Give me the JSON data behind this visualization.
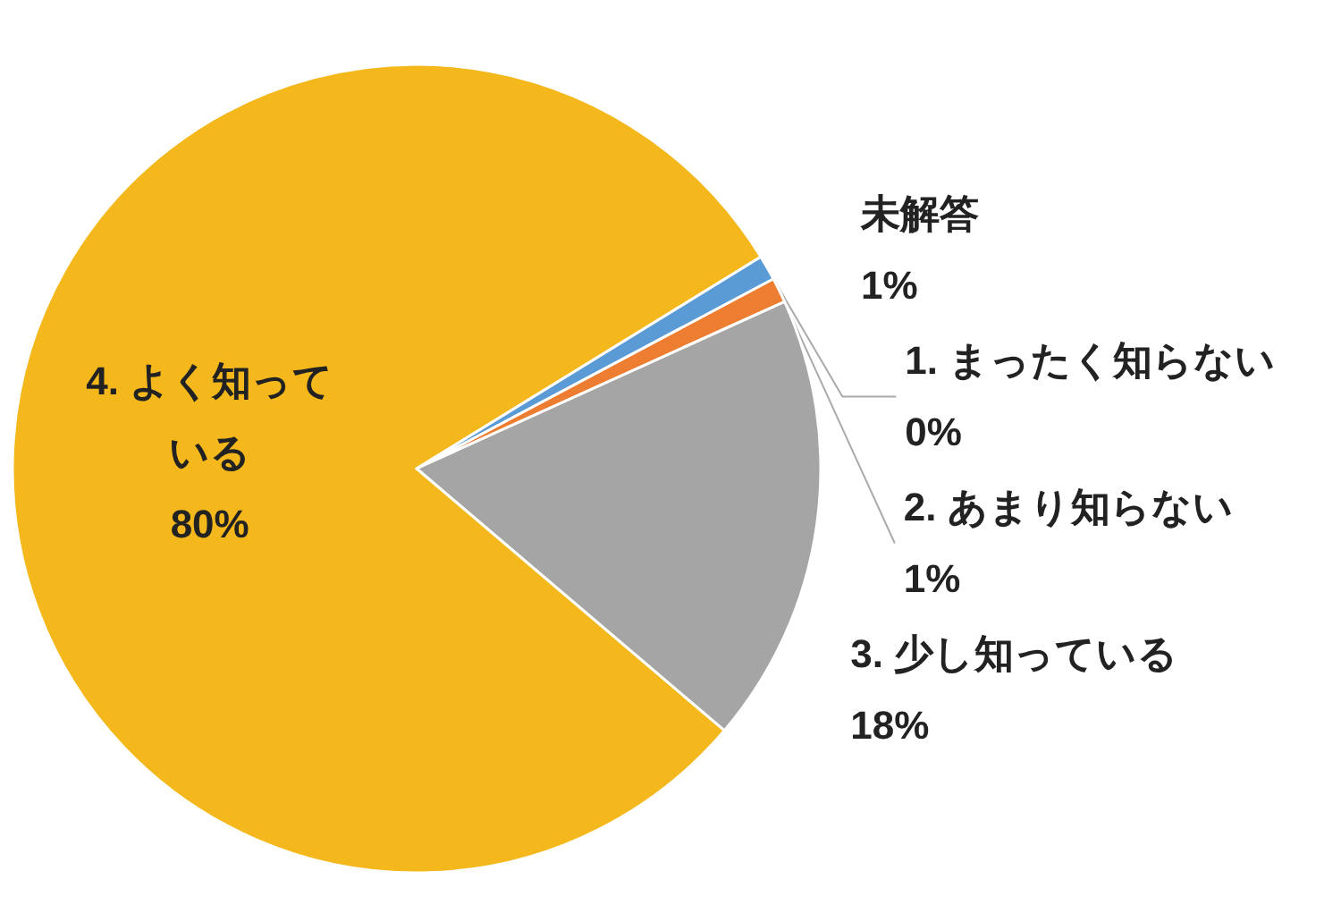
{
  "chart_data": {
    "type": "pie",
    "categories": [
      "1. まったく知らない",
      "2. あまり知らない",
      "3. 少し知っている",
      "4. よく知っている",
      "未解答"
    ],
    "values": [
      0,
      1,
      18,
      80,
      1
    ],
    "value_labels": [
      "0%",
      "1%",
      "18%",
      "80%",
      "1%"
    ],
    "colors": [
      "#4472c4",
      "#ed7d31",
      "#a5a5a5",
      "#f4b81c",
      "#5b9bd5"
    ],
    "legend": false
  }
}
